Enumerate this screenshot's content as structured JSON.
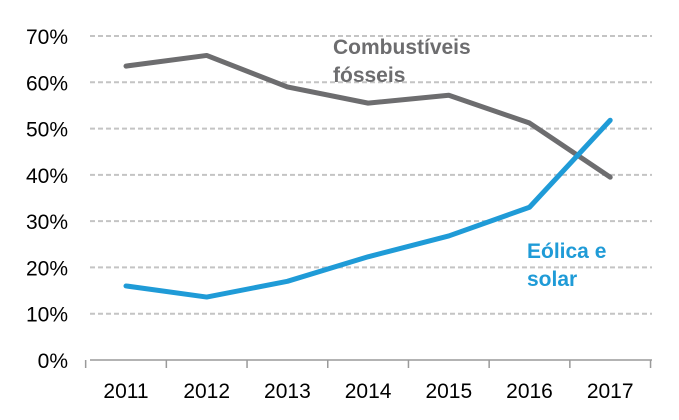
{
  "chart_data": {
    "type": "line",
    "title": "",
    "xlabel": "",
    "ylabel": "",
    "categories": [
      "2011",
      "2012",
      "2013",
      "2014",
      "2015",
      "2016",
      "2017"
    ],
    "ylim": [
      0,
      70
    ],
    "yticks": [
      0,
      10,
      20,
      30,
      40,
      50,
      60,
      70
    ],
    "ytick_labels": [
      "0%",
      "10%",
      "20%",
      "30%",
      "40%",
      "50%",
      "60%",
      "70%"
    ],
    "grid": "horizontal dashed",
    "legend": "inline labels",
    "series": [
      {
        "name": "Combustíveis fósseis",
        "label_lines": [
          "Combustíveis",
          "fósseis"
        ],
        "color": "#6d6d6f",
        "values": [
          63.5,
          65.8,
          59.0,
          55.5,
          57.2,
          51.2,
          39.5
        ]
      },
      {
        "name": "Eólica e solar",
        "label_lines": [
          "Eólica e",
          "solar"
        ],
        "color": "#1f9bd7",
        "values": [
          16.0,
          13.6,
          17.0,
          22.3,
          26.8,
          33.0,
          51.8
        ]
      }
    ]
  }
}
